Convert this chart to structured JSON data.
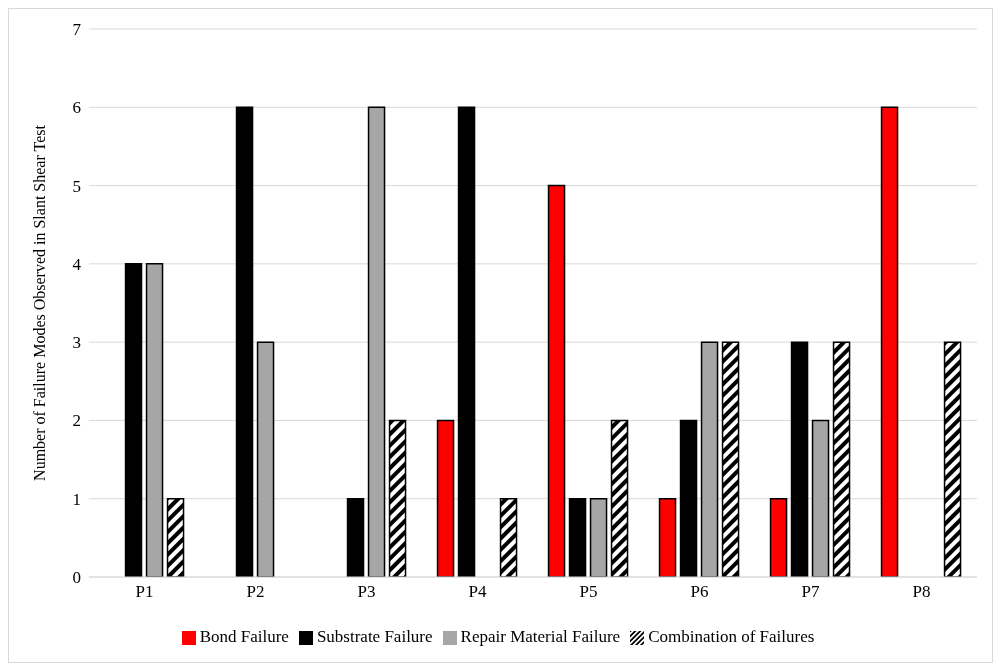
{
  "chart_data": {
    "type": "bar",
    "ylabel": "Number of Failure Modes Observed in Slant Shear Test",
    "categories": [
      "P1",
      "P2",
      "P3",
      "P4",
      "P5",
      "P6",
      "P7",
      "P8"
    ],
    "series": [
      {
        "name": "Bond Failure",
        "color": "#ff0000",
        "values": [
          0,
          0,
          0,
          2,
          5,
          1,
          1,
          6
        ]
      },
      {
        "name": "Substrate Failure",
        "color": "#000000",
        "values": [
          4,
          6,
          1,
          6,
          1,
          2,
          3,
          0
        ]
      },
      {
        "name": "Repair Material Failure",
        "color": "#a6a6a6",
        "values": [
          4,
          3,
          6,
          0,
          1,
          3,
          2,
          0
        ]
      },
      {
        "name": "Combination of Failures",
        "color": "#000000",
        "values": [
          1,
          0,
          2,
          1,
          2,
          3,
          3,
          3
        ]
      }
    ],
    "ylim": [
      0,
      7
    ],
    "yticks": [
      0,
      1,
      2,
      3,
      4,
      5,
      6,
      7
    ],
    "grid": "y",
    "legend": "bottom"
  }
}
